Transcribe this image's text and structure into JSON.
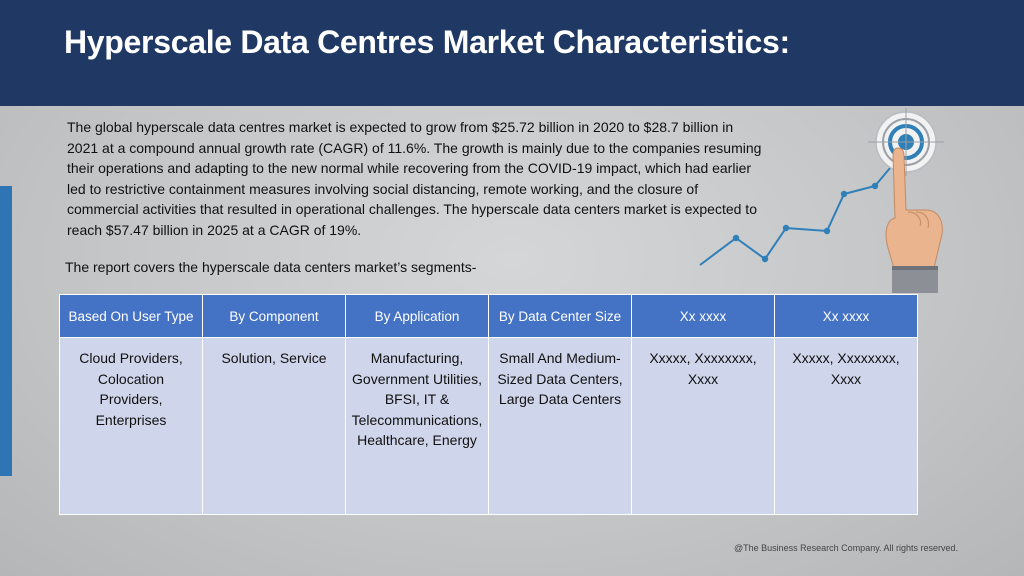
{
  "slide": {
    "title": "Hyperscale Data Centres Market Characteristics:",
    "intro": "The global hyperscale data centres market is expected to grow from $25.72 billion in 2020 to $28.7 billion in 2021 at a compound annual growth rate (CAGR) of 11.6%. The growth is mainly due to the companies resuming their operations and adapting to the new normal while recovering from the COVID-19 impact, which had earlier led to restrictive containment measures involving social distancing, remote working, and the closure of commercial activities that resulted in operational challenges. The hyperscale data centers market is expected to reach $57.47 billion in 2025 at a CAGR of 19%.",
    "segments_line": "The report covers the hyperscale data centers market’s segments-",
    "footer": "@The Business Research Company. All rights reserved."
  },
  "table": {
    "headers": [
      "Based On User Type",
      "By Component",
      "By Application",
      "By Data Center Size",
      "Xx xxxx",
      "Xx xxxx"
    ],
    "cells": [
      "Cloud Providers, Colocation Providers, Enterprises",
      "Solution, Service",
      "Manufacturing, Government Utilities, BFSI, IT & Telecommunications, Healthcare, Energy",
      "Small And Medium-Sized Data Centers, Large Data Centers",
      "Xxxxx, Xxxxxxxx, Xxxx",
      "Xxxxx, Xxxxxxxx, Xxxx"
    ]
  },
  "colors": {
    "header_band": "#1f3864",
    "accent_bar": "#2e75b6",
    "table_header": "#4472c4",
    "table_body": "#cfd5ea",
    "trend_line": "#2f7fb8"
  },
  "icons": {
    "illustration": "target-with-pointing-hand-and-trend-line-icon"
  }
}
